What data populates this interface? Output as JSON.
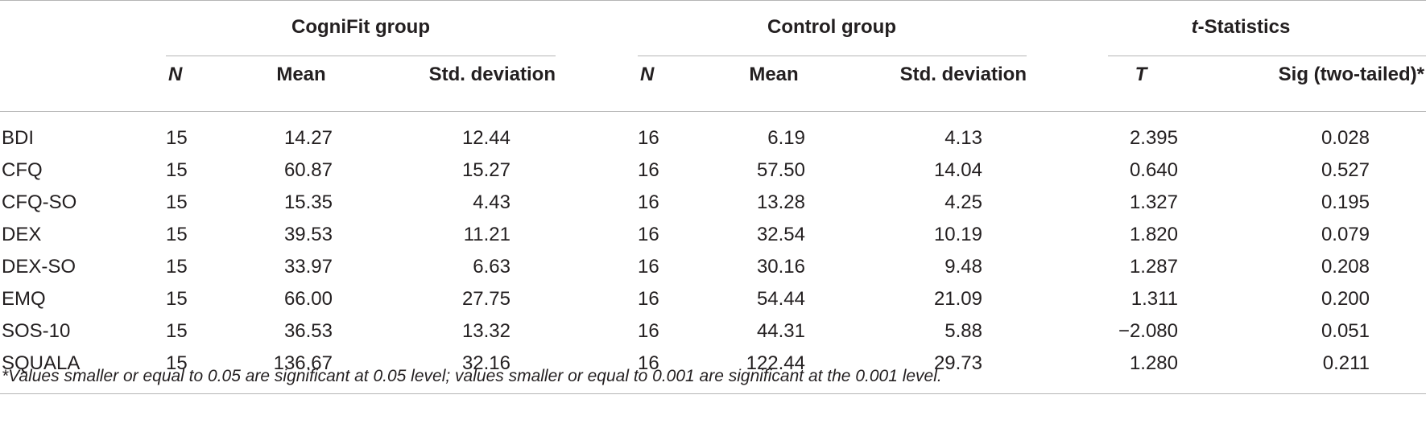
{
  "groups": {
    "cognifit": "CogniFit group",
    "control": "Control group",
    "tstats_italic": "t",
    "tstats_rest": "-Statistics"
  },
  "subheaders": {
    "n1": "N",
    "mean1": "Mean",
    "sd1": "Std. deviation",
    "n2": "N",
    "mean2": "Mean",
    "sd2": "Std. deviation",
    "t": "T",
    "sig": "Sig (two-tailed)*"
  },
  "rows": [
    {
      "label": "BDI",
      "n1": "15",
      "mean1": "14.27",
      "sd1": "12.44",
      "n2": "16",
      "mean2": "6.19",
      "sd2": "4.13",
      "t": "2.395",
      "sig": "0.028"
    },
    {
      "label": "CFQ",
      "n1": "15",
      "mean1": "60.87",
      "sd1": "15.27",
      "n2": "16",
      "mean2": "57.50",
      "sd2": "14.04",
      "t": "0.640",
      "sig": "0.527"
    },
    {
      "label": "CFQ-SO",
      "n1": "15",
      "mean1": "15.35",
      "sd1": "4.43",
      "n2": "16",
      "mean2": "13.28",
      "sd2": "4.25",
      "t": "1.327",
      "sig": "0.195"
    },
    {
      "label": "DEX",
      "n1": "15",
      "mean1": "39.53",
      "sd1": "11.21",
      "n2": "16",
      "mean2": "32.54",
      "sd2": "10.19",
      "t": "1.820",
      "sig": "0.079"
    },
    {
      "label": "DEX-SO",
      "n1": "15",
      "mean1": "33.97",
      "sd1": "6.63",
      "n2": "16",
      "mean2": "30.16",
      "sd2": "9.48",
      "t": "1.287",
      "sig": "0.208"
    },
    {
      "label": "EMQ",
      "n1": "15",
      "mean1": "66.00",
      "sd1": "27.75",
      "n2": "16",
      "mean2": "54.44",
      "sd2": "21.09",
      "t": "1.311",
      "sig": "0.200"
    },
    {
      "label": "SOS-10",
      "n1": "15",
      "mean1": "36.53",
      "sd1": "13.32",
      "n2": "16",
      "mean2": "44.31",
      "sd2": "5.88",
      "t": "−2.080",
      "sig": "0.051"
    },
    {
      "label": "SQUALA",
      "n1": "15",
      "mean1": "136.67",
      "sd1": "32.16",
      "n2": "16",
      "mean2": "122.44",
      "sd2": "29.73",
      "t": "1.280",
      "sig": "0.211"
    }
  ],
  "footnote": "*Values smaller or equal to 0.05 are significant at 0.05 level; values smaller or equal to 0.001 are significant at the 0.001 level."
}
